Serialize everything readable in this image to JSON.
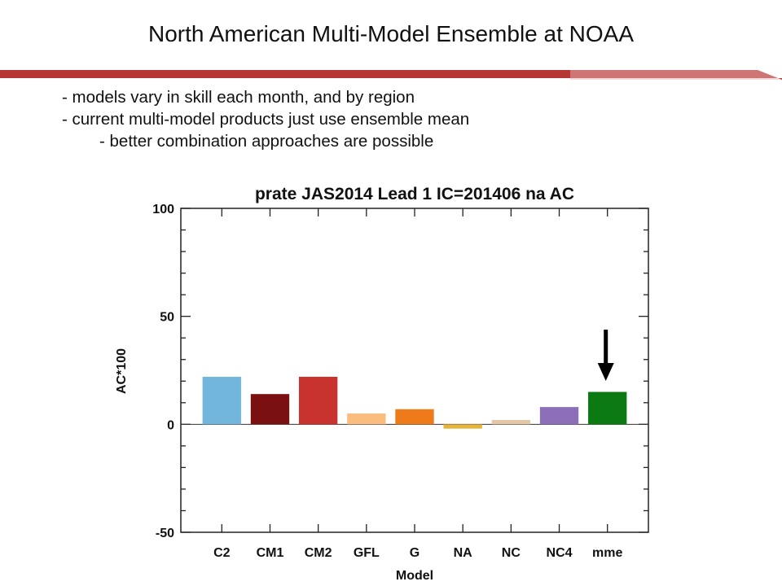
{
  "slide": {
    "title": "North American Multi-Model Ensemble at NOAA",
    "bullets": [
      "- models vary in skill each month, and by region",
      "- current multi-model products just use ensemble mean",
      "- better combination approaches are possible"
    ],
    "banner_color": "#b22a2a"
  },
  "chart_data": {
    "type": "bar",
    "title": "prate JAS2014 Lead 1 IC=201406 na AC",
    "xlabel": "Model",
    "ylabel": "AC*100",
    "ylim": [
      -50,
      100
    ],
    "yticks": [
      100,
      50,
      0,
      -50
    ],
    "categories": [
      "C2",
      "CM1",
      "CM2",
      "GFL",
      "G",
      "NA",
      "NC",
      "NC4",
      "mme"
    ],
    "values": [
      22,
      14,
      22,
      5,
      7,
      -2,
      2,
      8,
      15
    ],
    "colors": [
      "#72b6dd",
      "#7a1010",
      "#c8332e",
      "#fbbd7e",
      "#ee7a1a",
      "#e4b53a",
      "#e6c7a6",
      "#8b6fb8",
      "#0c7a12"
    ],
    "grid": false,
    "highlight": "mme"
  }
}
